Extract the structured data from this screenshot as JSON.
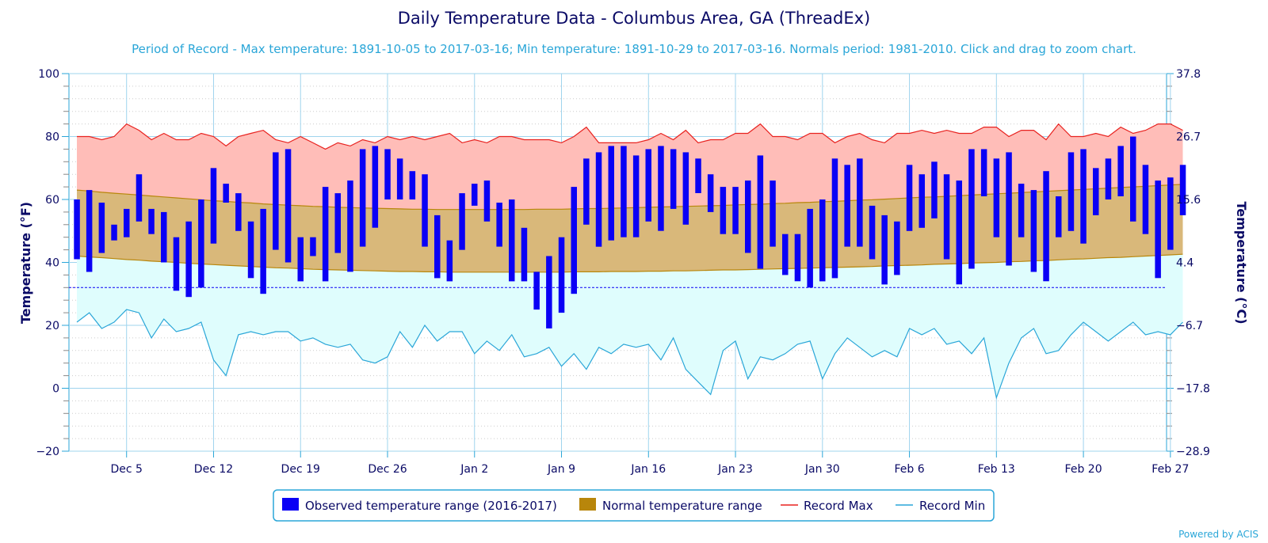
{
  "chart_data": {
    "type": "bar",
    "title": "Daily Temperature Data - Columbus Area, GA (ThreadEx)",
    "subtitle": "Period of Record - Max temperature: 1891-10-05 to 2017-03-16; Min temperature: 1891-10-29 to 2017-03-16. Normals period: 1981-2010. Click and drag to zoom chart.",
    "ylabel_left": "Temperature (°F)",
    "ylabel_right": "Temperature (°C)",
    "ylim": [
      -20,
      100
    ],
    "yticks_left": [
      "100",
      "80",
      "60",
      "40",
      "20",
      "0",
      "−20"
    ],
    "yticks_right": [
      "37.8",
      "26.7",
      "15.6",
      "4.4",
      "−6.7",
      "−17.8",
      "−28.9"
    ],
    "xticks": [
      "Dec 5",
      "Dec 12",
      "Dec 19",
      "Dec 26",
      "Jan 2",
      "Jan 9",
      "Jan 16",
      "Jan 23",
      "Jan 30",
      "Feb 6",
      "Feb 13",
      "Feb 20",
      "Feb 27"
    ],
    "freezing_line": 32,
    "grid": true,
    "legend_position": "bottom",
    "colors": {
      "observed": "#0a00f5",
      "normal": "#b8860b",
      "record_max": "#e8221f",
      "record_min": "#2aa6d8",
      "record_max_fill": "#ffbdb8",
      "normal_fill": "#d9b87a",
      "record_min_fill": "#dffdfd"
    },
    "series": [
      {
        "name": "Observed temperature range (2016-2017)",
        "low": [
          41,
          37,
          43,
          47,
          48,
          53,
          49,
          40,
          31,
          29,
          32,
          46,
          59,
          50,
          35,
          30,
          44,
          40,
          34,
          42,
          34,
          43,
          37,
          45,
          51,
          60,
          60,
          60,
          45,
          35,
          34,
          44,
          58,
          53,
          45,
          34,
          34,
          25,
          19,
          24,
          30,
          52,
          45,
          47,
          48,
          48,
          53,
          50,
          57,
          52,
          62,
          56,
          49,
          49,
          43,
          38,
          45,
          36,
          34,
          32,
          34,
          35,
          45,
          45,
          41,
          33,
          36,
          50,
          51,
          54,
          41,
          33,
          38,
          61,
          48,
          39,
          48,
          37,
          34,
          48,
          50,
          46,
          55,
          60,
          61,
          53,
          49,
          35,
          44,
          55
        ],
        "high": [
          60,
          63,
          59,
          52,
          57,
          68,
          57,
          56,
          48,
          53,
          60,
          70,
          65,
          62,
          53,
          57,
          75,
          76,
          48,
          48,
          64,
          62,
          66,
          76,
          77,
          76,
          73,
          69,
          68,
          55,
          47,
          62,
          65,
          66,
          59,
          60,
          51,
          37,
          42,
          48,
          64,
          73,
          75,
          77,
          77,
          74,
          76,
          77,
          76,
          75,
          73,
          68,
          64,
          64,
          66,
          74,
          66,
          49,
          49,
          57,
          60,
          73,
          71,
          73,
          58,
          55,
          53,
          71,
          68,
          72,
          68,
          66,
          76,
          76,
          73,
          75,
          65,
          63,
          69,
          61,
          75,
          76,
          70,
          73,
          77,
          80,
          71,
          66,
          67,
          71
        ]
      },
      {
        "name": "Normal temperature range",
        "low": [
          42.0,
          41.7,
          41.5,
          41.2,
          40.9,
          40.7,
          40.4,
          40.2,
          40.0,
          39.7,
          39.5,
          39.3,
          39.1,
          38.9,
          38.7,
          38.5,
          38.3,
          38.2,
          38.0,
          37.8,
          37.7,
          37.6,
          37.5,
          37.4,
          37.3,
          37.2,
          37.1,
          37.1,
          37.0,
          37.0,
          36.9,
          36.9,
          36.9,
          36.9,
          36.9,
          36.9,
          36.9,
          36.9,
          36.9,
          36.9,
          37.0,
          37.0,
          37.0,
          37.1,
          37.1,
          37.1,
          37.2,
          37.2,
          37.3,
          37.3,
          37.4,
          37.5,
          37.6,
          37.6,
          37.7,
          37.8,
          37.9,
          38.0,
          38.1,
          38.2,
          38.3,
          38.4,
          38.5,
          38.6,
          38.7,
          38.9,
          39.0,
          39.1,
          39.2,
          39.4,
          39.5,
          39.6,
          39.8,
          39.9,
          40.0,
          40.2,
          40.3,
          40.5,
          40.6,
          40.8,
          41.0,
          41.1,
          41.3,
          41.5,
          41.6,
          41.8,
          42.0,
          42.2,
          42.4,
          42.6
        ],
        "high": [
          63.0,
          62.7,
          62.3,
          62.0,
          61.7,
          61.4,
          61.1,
          60.8,
          60.5,
          60.2,
          59.9,
          59.6,
          59.4,
          59.1,
          58.9,
          58.6,
          58.4,
          58.2,
          58.0,
          57.8,
          57.7,
          57.5,
          57.4,
          57.3,
          57.2,
          57.1,
          57.0,
          56.9,
          56.9,
          56.8,
          56.8,
          56.8,
          56.8,
          56.8,
          56.8,
          56.8,
          56.8,
          56.9,
          56.9,
          56.9,
          57.0,
          57.1,
          57.1,
          57.2,
          57.3,
          57.4,
          57.5,
          57.6,
          57.7,
          57.8,
          57.9,
          58.0,
          58.1,
          58.3,
          58.4,
          58.5,
          58.7,
          58.8,
          59.0,
          59.1,
          59.3,
          59.4,
          59.6,
          59.8,
          59.9,
          60.1,
          60.3,
          60.5,
          60.7,
          60.8,
          61.0,
          61.2,
          61.4,
          61.6,
          61.8,
          62.0,
          62.2,
          62.4,
          62.6,
          62.8,
          63.0,
          63.2,
          63.4,
          63.6,
          63.8,
          64.0,
          64.2,
          64.4,
          64.6,
          64.8
        ]
      },
      {
        "name": "Record Max",
        "values": [
          80,
          80,
          79,
          80,
          84,
          82,
          79,
          81,
          79,
          79,
          81,
          80,
          77,
          80,
          81,
          82,
          79,
          78,
          80,
          78,
          76,
          78,
          77,
          79,
          78,
          80,
          79,
          80,
          79,
          80,
          81,
          78,
          79,
          78,
          80,
          80,
          79,
          79,
          79,
          78,
          80,
          83,
          78,
          78,
          78,
          78,
          79,
          81,
          79,
          82,
          78,
          79,
          79,
          81,
          81,
          84,
          80,
          80,
          79,
          81,
          81,
          78,
          80,
          81,
          79,
          78,
          81,
          81,
          82,
          81,
          82,
          81,
          81,
          83,
          83,
          80,
          82,
          82,
          79,
          84,
          80,
          80,
          81,
          80,
          83,
          81,
          82,
          84,
          84,
          82
        ]
      },
      {
        "name": "Record Min",
        "values": [
          21,
          24,
          19,
          21,
          25,
          24,
          16,
          22,
          18,
          19,
          21,
          9,
          4,
          17,
          18,
          17,
          18,
          18,
          15,
          16,
          14,
          13,
          14,
          9,
          8,
          10,
          18,
          13,
          20,
          15,
          18,
          18,
          11,
          15,
          12,
          17,
          10,
          11,
          13,
          7,
          11,
          6,
          13,
          11,
          14,
          13,
          14,
          9,
          16,
          6,
          2,
          -2,
          12,
          15,
          3,
          10,
          9,
          11,
          14,
          15,
          3,
          11,
          16,
          13,
          10,
          12,
          10,
          19,
          17,
          19,
          14,
          15,
          11,
          16,
          -3,
          8,
          16,
          19,
          11,
          12,
          17,
          21,
          18,
          15,
          18,
          21,
          17,
          18,
          17,
          21
        ]
      }
    ]
  },
  "legend": [
    {
      "label": "Observed temperature range (2016-2017)",
      "symbol": "block",
      "color": "#0a00f5"
    },
    {
      "label": "Normal temperature range",
      "symbol": "block",
      "color": "#b8860b"
    },
    {
      "label": "Record Max",
      "symbol": "line",
      "color": "#e8221f"
    },
    {
      "label": "Record Min",
      "symbol": "line",
      "color": "#2aa6d8"
    }
  ],
  "credit": "Powered by ACIS"
}
